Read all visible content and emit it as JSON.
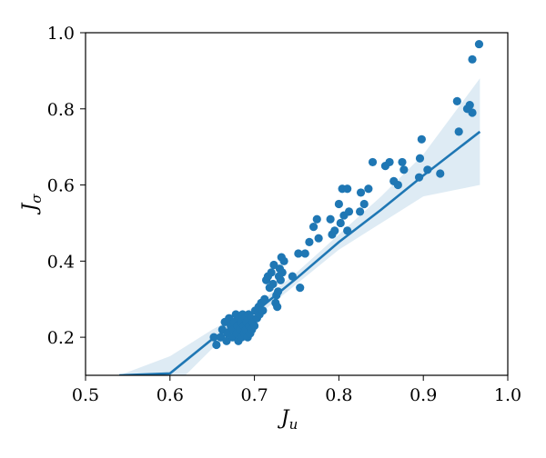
{
  "chart_data": {
    "type": "scatter",
    "xlabel": "J",
    "xlabel_subscript": "u",
    "ylabel": "J",
    "ylabel_subscript": "σ",
    "xlim": [
      0.5,
      1.0
    ],
    "ylim": [
      0.1,
      1.0
    ],
    "xticks": [
      0.5,
      0.6,
      0.7,
      0.8,
      0.9,
      1.0
    ],
    "xtick_labels": [
      "0.5",
      "0.6",
      "0.7",
      "0.8",
      "0.9",
      "1.0"
    ],
    "yticks": [
      0.2,
      0.4,
      0.6,
      0.8,
      1.0
    ],
    "ytick_labels": [
      "0.2",
      "0.4",
      "0.6",
      "0.8",
      "1.0"
    ],
    "grid": false,
    "colors": {
      "points": "#1f77b4",
      "fit_line": "#1f77b4",
      "confidence_band": "#1f77b4"
    },
    "points": [
      [
        0.652,
        0.2
      ],
      [
        0.655,
        0.18
      ],
      [
        0.66,
        0.2
      ],
      [
        0.662,
        0.22
      ],
      [
        0.665,
        0.24
      ],
      [
        0.667,
        0.19
      ],
      [
        0.668,
        0.21
      ],
      [
        0.67,
        0.25
      ],
      [
        0.672,
        0.23
      ],
      [
        0.674,
        0.2
      ],
      [
        0.675,
        0.22
      ],
      [
        0.676,
        0.24
      ],
      [
        0.678,
        0.26
      ],
      [
        0.679,
        0.21
      ],
      [
        0.68,
        0.23
      ],
      [
        0.681,
        0.19
      ],
      [
        0.682,
        0.25
      ],
      [
        0.683,
        0.22
      ],
      [
        0.684,
        0.24
      ],
      [
        0.685,
        0.2
      ],
      [
        0.686,
        0.26
      ],
      [
        0.687,
        0.23
      ],
      [
        0.688,
        0.21
      ],
      [
        0.689,
        0.25
      ],
      [
        0.69,
        0.22
      ],
      [
        0.691,
        0.24
      ],
      [
        0.692,
        0.2
      ],
      [
        0.693,
        0.26
      ],
      [
        0.694,
        0.23
      ],
      [
        0.695,
        0.21
      ],
      [
        0.696,
        0.25
      ],
      [
        0.697,
        0.22
      ],
      [
        0.698,
        0.24
      ],
      [
        0.7,
        0.23
      ],
      [
        0.701,
        0.27
      ],
      [
        0.703,
        0.25
      ],
      [
        0.705,
        0.28
      ],
      [
        0.706,
        0.26
      ],
      [
        0.708,
        0.29
      ],
      [
        0.71,
        0.27
      ],
      [
        0.712,
        0.3
      ],
      [
        0.714,
        0.35
      ],
      [
        0.716,
        0.36
      ],
      [
        0.718,
        0.33
      ],
      [
        0.72,
        0.37
      ],
      [
        0.722,
        0.34
      ],
      [
        0.723,
        0.39
      ],
      [
        0.725,
        0.29
      ],
      [
        0.726,
        0.31
      ],
      [
        0.727,
        0.28
      ],
      [
        0.728,
        0.32
      ],
      [
        0.729,
        0.36
      ],
      [
        0.73,
        0.38
      ],
      [
        0.731,
        0.35
      ],
      [
        0.732,
        0.41
      ],
      [
        0.733,
        0.37
      ],
      [
        0.735,
        0.4
      ],
      [
        0.745,
        0.36
      ],
      [
        0.752,
        0.42
      ],
      [
        0.754,
        0.33
      ],
      [
        0.76,
        0.42
      ],
      [
        0.765,
        0.45
      ],
      [
        0.77,
        0.49
      ],
      [
        0.774,
        0.51
      ],
      [
        0.776,
        0.46
      ],
      [
        0.79,
        0.51
      ],
      [
        0.792,
        0.47
      ],
      [
        0.795,
        0.48
      ],
      [
        0.8,
        0.55
      ],
      [
        0.802,
        0.5
      ],
      [
        0.804,
        0.59
      ],
      [
        0.806,
        0.52
      ],
      [
        0.81,
        0.48
      ],
      [
        0.81,
        0.59
      ],
      [
        0.812,
        0.53
      ],
      [
        0.825,
        0.53
      ],
      [
        0.826,
        0.58
      ],
      [
        0.83,
        0.55
      ],
      [
        0.835,
        0.59
      ],
      [
        0.84,
        0.66
      ],
      [
        0.855,
        0.65
      ],
      [
        0.86,
        0.66
      ],
      [
        0.865,
        0.61
      ],
      [
        0.87,
        0.6
      ],
      [
        0.875,
        0.66
      ],
      [
        0.877,
        0.64
      ],
      [
        0.895,
        0.62
      ],
      [
        0.896,
        0.67
      ],
      [
        0.898,
        0.72
      ],
      [
        0.905,
        0.64
      ],
      [
        0.92,
        0.63
      ],
      [
        0.94,
        0.82
      ],
      [
        0.942,
        0.74
      ],
      [
        0.952,
        0.8
      ],
      [
        0.955,
        0.81
      ],
      [
        0.958,
        0.79
      ],
      [
        0.958,
        0.93
      ],
      [
        0.966,
        0.97
      ]
    ],
    "regression": {
      "x_start": 0.54,
      "x_end": 0.967,
      "band": [
        [
          0.54,
          0.1,
          0.1
        ],
        [
          0.6,
          0.06,
          0.15
        ],
        [
          0.65,
          0.17,
          0.22
        ],
        [
          0.7,
          0.25,
          0.28
        ],
        [
          0.75,
          0.34,
          0.37
        ],
        [
          0.8,
          0.43,
          0.47
        ],
        [
          0.85,
          0.5,
          0.57
        ],
        [
          0.9,
          0.57,
          0.68
        ],
        [
          0.967,
          0.6,
          0.88
        ]
      ]
    }
  }
}
